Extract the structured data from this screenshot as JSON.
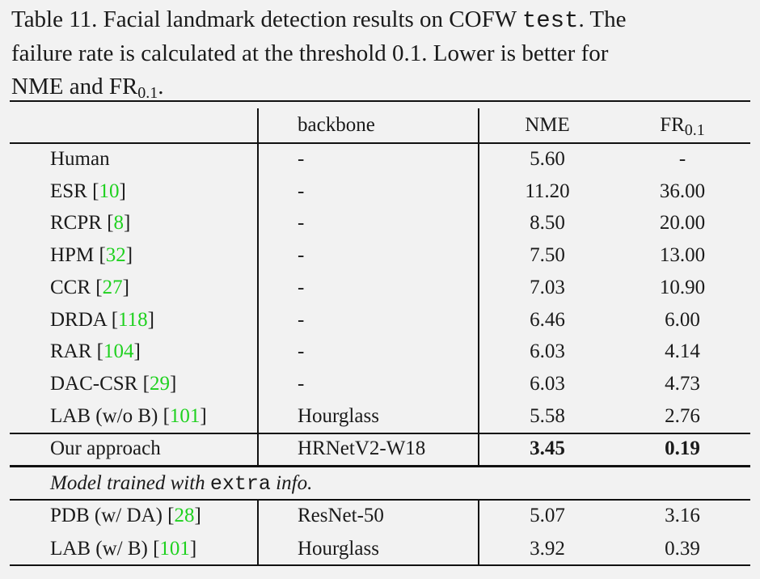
{
  "caption": {
    "line1_prefix": "Table 11. Facial landmark detection results on COFW ",
    "line1_mono": "test",
    "line1_suffix": ". The",
    "line2": "failure rate is calculated at the threshold 0.1.  Lower is better for",
    "line3_prefix": "NME and FR",
    "line3_sub": "0.1",
    "line3_suffix": "."
  },
  "header": {
    "backbone": "backbone",
    "nme": "NME",
    "fr_main": "FR",
    "fr_sub": "0.1"
  },
  "rows": [
    {
      "method": "Human",
      "cite": "",
      "backbone": "-",
      "nme": "5.60",
      "fr": "-"
    },
    {
      "method": "ESR",
      "cite": "10",
      "backbone": "-",
      "nme": "11.20",
      "fr": "36.00"
    },
    {
      "method": "RCPR",
      "cite": "8",
      "backbone": "-",
      "nme": "8.50",
      "fr": "20.00"
    },
    {
      "method": "HPM",
      "cite": "32",
      "backbone": "-",
      "nme": "7.50",
      "fr": "13.00"
    },
    {
      "method": "CCR",
      "cite": "27",
      "backbone": "-",
      "nme": "7.03",
      "fr": "10.90"
    },
    {
      "method": "DRDA",
      "cite": "118",
      "backbone": "-",
      "nme": "6.46",
      "fr": "6.00"
    },
    {
      "method": "RAR",
      "cite": "104",
      "backbone": "-",
      "nme": "6.03",
      "fr": "4.14"
    },
    {
      "method": "DAC-CSR",
      "cite": "29",
      "backbone": "-",
      "nme": "6.03",
      "fr": "4.73"
    },
    {
      "method": "LAB (w/o B)",
      "cite": "101",
      "backbone": "Hourglass",
      "nme": "5.58",
      "fr": "2.76"
    }
  ],
  "ours": {
    "method": "Our approach",
    "backbone": "HRNetV2-W18",
    "nme": "3.45",
    "fr": "0.19"
  },
  "extra_section": {
    "prefix": "Model trained with ",
    "mono": "extra",
    "suffix": " info."
  },
  "extra_rows": [
    {
      "method": "PDB (w/ DA)",
      "cite": "28",
      "backbone": "ResNet-50",
      "nme": "5.07",
      "fr": "3.16"
    },
    {
      "method": "LAB (w/ B)",
      "cite": "101",
      "backbone": "Hourglass",
      "nme": "3.92",
      "fr": "0.39"
    }
  ]
}
